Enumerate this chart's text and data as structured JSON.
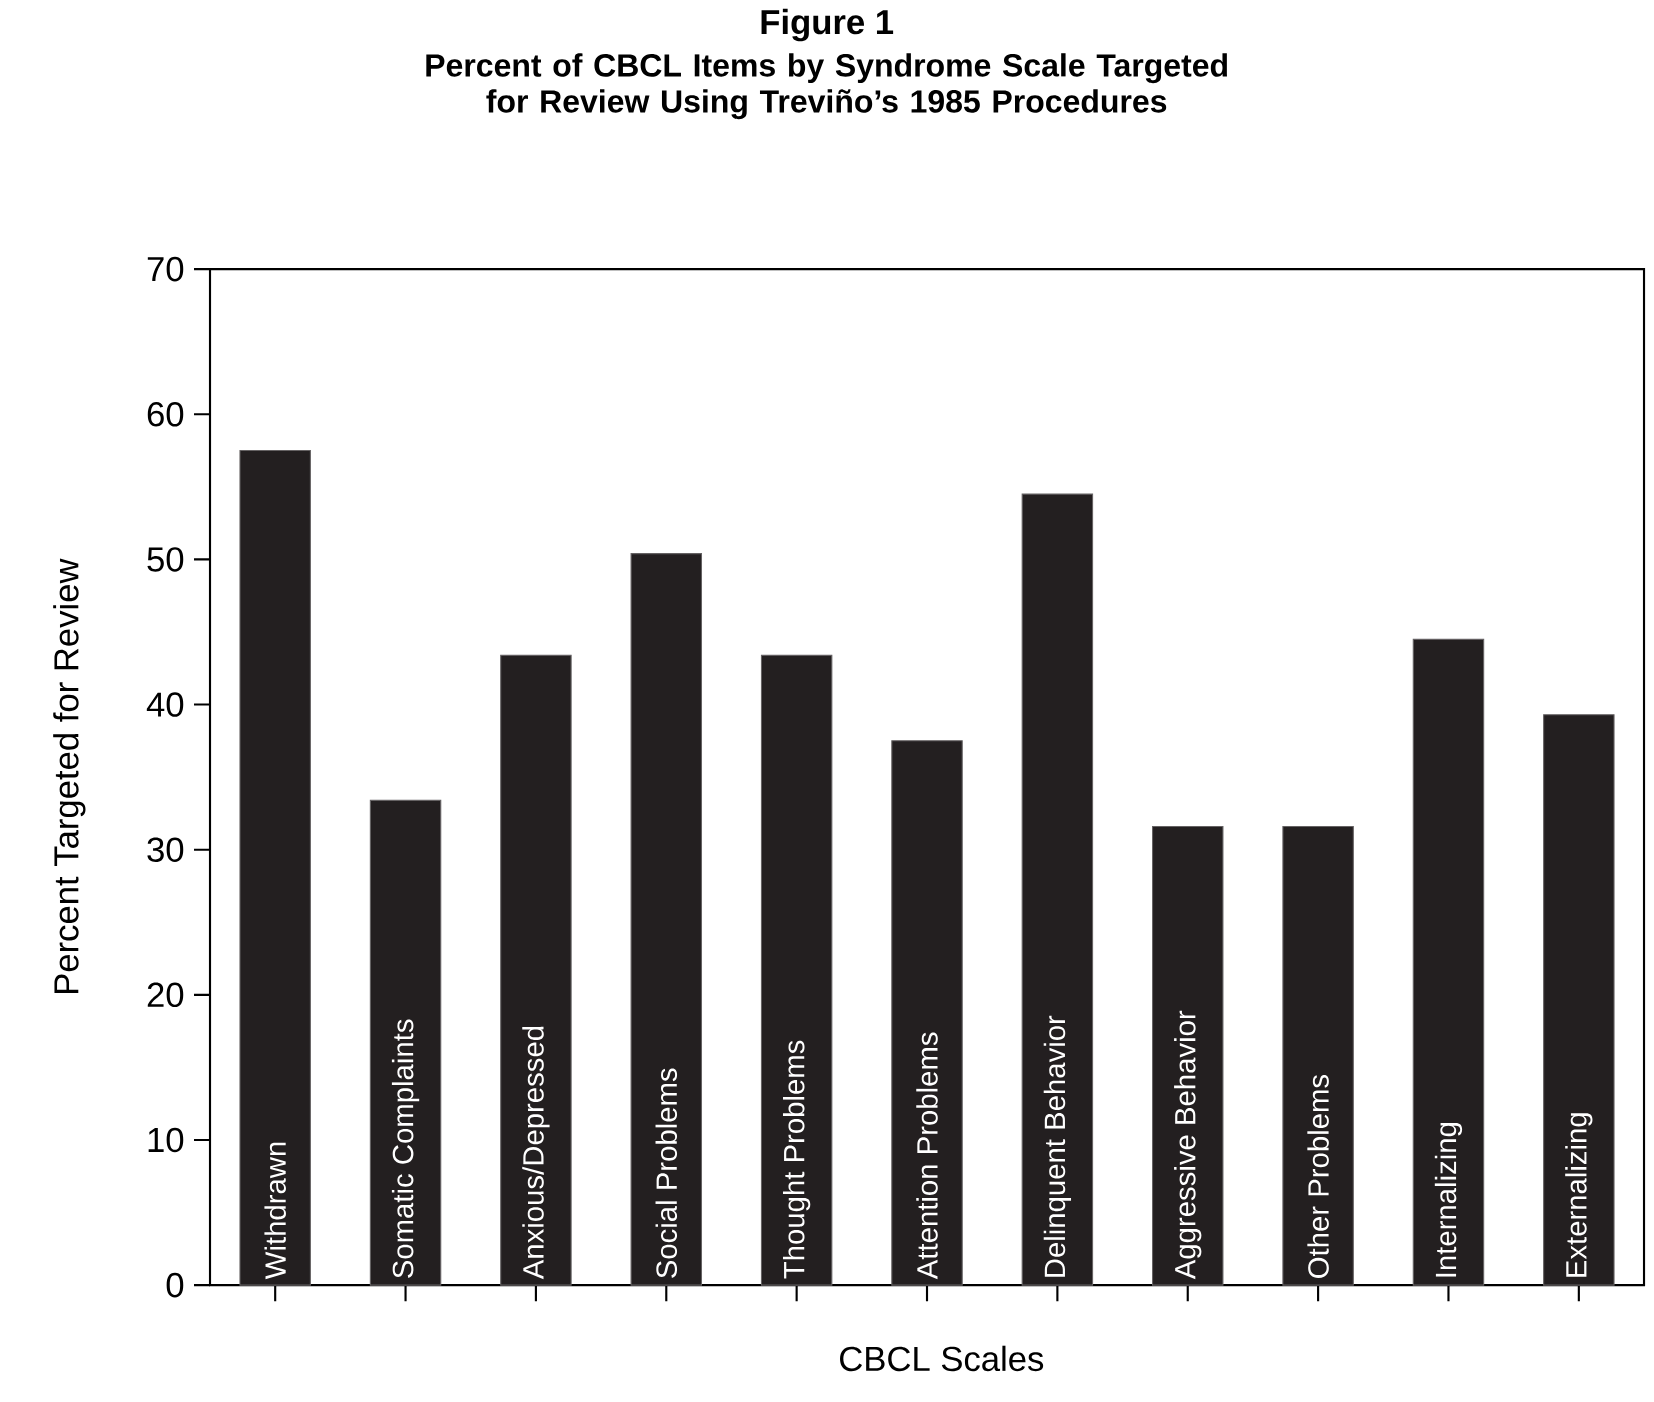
{
  "chart_data": {
    "type": "bar",
    "title": "Figure 1",
    "subtitle": "Percent of CBCL Items by Syndrome Scale Targeted for Review Using Treviño’s 1985 Procedures",
    "xlabel": "CBCL Scales",
    "ylabel": "Percent Targeted for Review",
    "categories": [
      "Withdrawn",
      "Somatic Complaints",
      "Anxious/Depressed",
      "Social Problems",
      "Thought Problems",
      "Attention Problems",
      "Delinquent Behavior",
      "Aggressive Behavior",
      "Other Problems",
      "Internalizing",
      "Externalizing"
    ],
    "values": [
      57.5,
      33.4,
      43.4,
      50.4,
      43.4,
      37.5,
      54.5,
      31.6,
      31.6,
      44.5,
      39.3
    ],
    "color": "#231f20",
    "ylim": [
      0,
      70
    ],
    "yticks": [
      0,
      10,
      20,
      30,
      40,
      50,
      60,
      70
    ],
    "grid": false
  }
}
